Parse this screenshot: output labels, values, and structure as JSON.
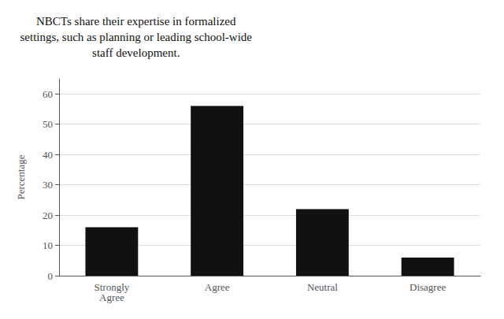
{
  "chart_data": {
    "type": "bar",
    "title": "NBCTs share their expertise in formalized\nsettings, such as planning or leading school-wide\nstaff development.",
    "categories": [
      "Strongly\nAgree",
      "Agree",
      "Neutral",
      "Disagree"
    ],
    "values": [
      16,
      56,
      22,
      6
    ],
    "color": "#111111",
    "ylabel": "Percentage",
    "ylim": [
      0,
      65
    ],
    "yticks": [
      0,
      10,
      20,
      30,
      40,
      50,
      60
    ],
    "grid": true
  }
}
